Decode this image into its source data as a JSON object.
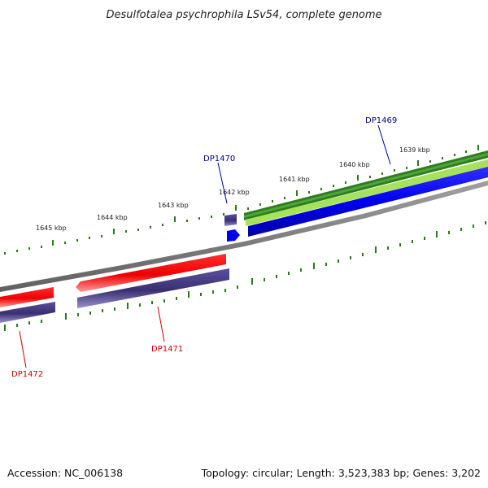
{
  "title": "Desulfotalea psychrophila LSv54, complete genome",
  "footer": {
    "accession": "Accession: NC_006138",
    "summary": "Topology: circular; Length: 3,523,383 bp; Genes: 3,202"
  },
  "ticks": [
    {
      "label": "1645 kbp"
    },
    {
      "label": "1644 kbp"
    },
    {
      "label": "1643 kbp"
    },
    {
      "label": "1642 kbp"
    },
    {
      "label": "1641 kbp"
    },
    {
      "label": "1640 kbp"
    },
    {
      "label": "1639 kbp"
    }
  ],
  "genes": [
    {
      "name": "DP1469",
      "strand": "forward",
      "label_color": "#00008b"
    },
    {
      "name": "DP1470",
      "strand": "forward",
      "label_color": "#00008b"
    },
    {
      "name": "DP1471",
      "strand": "reverse",
      "label_color": "#cc0000"
    },
    {
      "name": "DP1472",
      "strand": "reverse",
      "label_color": "#cc0000"
    }
  ],
  "colors": {
    "cds_forward": "#0000ee",
    "cds_reverse": "#ee0000",
    "gene_bar": "#4a3f8c",
    "feature_dark_green": "#2e7d1e",
    "feature_light_green": "#a6e35a",
    "backbone": "#808080",
    "ticks": "#2a7a1a"
  }
}
